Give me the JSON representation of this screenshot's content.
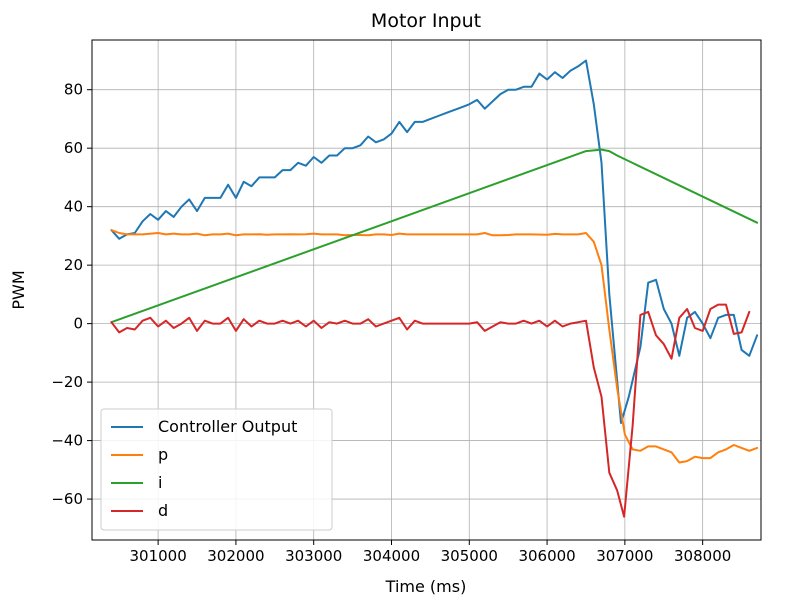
{
  "chart_data": {
    "type": "line",
    "title": "Motor Input",
    "xlabel": "Time (ms)",
    "ylabel": "PWM",
    "xlim": [
      300150,
      308750
    ],
    "ylim": [
      -74,
      97
    ],
    "x_ticks": [
      301000,
      302000,
      303000,
      304000,
      305000,
      306000,
      307000,
      308000
    ],
    "y_ticks": [
      -60,
      -40,
      -20,
      0,
      20,
      40,
      60,
      80
    ],
    "grid": true,
    "legend_position": "lower-left",
    "series": [
      {
        "name": "Controller Output",
        "color": "#1f77b4",
        "points": [
          [
            300400,
            32
          ],
          [
            300500,
            29
          ],
          [
            300600,
            30.5
          ],
          [
            300700,
            31
          ],
          [
            300800,
            35
          ],
          [
            300900,
            37.5
          ],
          [
            301000,
            35.5
          ],
          [
            301100,
            38.5
          ],
          [
            301200,
            36.5
          ],
          [
            301300,
            40
          ],
          [
            301400,
            42.5
          ],
          [
            301500,
            38.5
          ],
          [
            301600,
            43
          ],
          [
            301700,
            43
          ],
          [
            301800,
            43
          ],
          [
            301900,
            47.5
          ],
          [
            302000,
            43
          ],
          [
            302100,
            48.5
          ],
          [
            302200,
            47
          ],
          [
            302300,
            50
          ],
          [
            302400,
            50
          ],
          [
            302500,
            50
          ],
          [
            302600,
            52.5
          ],
          [
            302700,
            52.5
          ],
          [
            302800,
            55
          ],
          [
            302900,
            54
          ],
          [
            303000,
            57
          ],
          [
            303100,
            55
          ],
          [
            303200,
            57.5
          ],
          [
            303300,
            57.5
          ],
          [
            303400,
            60
          ],
          [
            303500,
            60
          ],
          [
            303600,
            61
          ],
          [
            303700,
            64
          ],
          [
            303800,
            62
          ],
          [
            303900,
            63
          ],
          [
            304000,
            65
          ],
          [
            304100,
            69
          ],
          [
            304200,
            65.5
          ],
          [
            304300,
            69
          ],
          [
            304400,
            69
          ],
          [
            304500,
            70
          ],
          [
            304600,
            71
          ],
          [
            304700,
            72
          ],
          [
            304800,
            73
          ],
          [
            304900,
            74
          ],
          [
            305000,
            75
          ],
          [
            305100,
            76.5
          ],
          [
            305200,
            73.5
          ],
          [
            305300,
            76
          ],
          [
            305400,
            78.5
          ],
          [
            305500,
            80
          ],
          [
            305600,
            80
          ],
          [
            305700,
            81
          ],
          [
            305800,
            81
          ],
          [
            305900,
            85.5
          ],
          [
            306000,
            83.5
          ],
          [
            306100,
            86
          ],
          [
            306200,
            84
          ],
          [
            306300,
            86.5
          ],
          [
            306400,
            88
          ],
          [
            306500,
            90
          ],
          [
            306600,
            75
          ],
          [
            306700,
            55
          ],
          [
            306800,
            10
          ],
          [
            306950,
            -34
          ],
          [
            307050,
            -25
          ],
          [
            307200,
            -8
          ],
          [
            307300,
            14
          ],
          [
            307400,
            15
          ],
          [
            307500,
            5
          ],
          [
            307600,
            0
          ],
          [
            307700,
            -11
          ],
          [
            307800,
            2
          ],
          [
            307900,
            4
          ],
          [
            308000,
            0
          ],
          [
            308100,
            -5
          ],
          [
            308200,
            2
          ],
          [
            308300,
            3
          ],
          [
            308400,
            3
          ],
          [
            308500,
            -9
          ],
          [
            308600,
            -11
          ],
          [
            308700,
            -4
          ]
        ]
      },
      {
        "name": "p",
        "color": "#ff7f0e",
        "points": [
          [
            300400,
            32
          ],
          [
            300500,
            31
          ],
          [
            300600,
            30.5
          ],
          [
            300700,
            30.5
          ],
          [
            300800,
            30.5
          ],
          [
            301000,
            31
          ],
          [
            301100,
            30.5
          ],
          [
            301200,
            30.8
          ],
          [
            301300,
            30.5
          ],
          [
            301400,
            30.5
          ],
          [
            301500,
            30.8
          ],
          [
            301600,
            30.2
          ],
          [
            301700,
            30.5
          ],
          [
            301800,
            30.5
          ],
          [
            301900,
            30.8
          ],
          [
            302000,
            30.2
          ],
          [
            302100,
            30.5
          ],
          [
            302200,
            30.5
          ],
          [
            302300,
            30.6
          ],
          [
            302400,
            30.4
          ],
          [
            302500,
            30.5
          ],
          [
            302600,
            30.5
          ],
          [
            302700,
            30.6
          ],
          [
            302800,
            30.5
          ],
          [
            302900,
            30.6
          ],
          [
            303000,
            30.8
          ],
          [
            303100,
            30.5
          ],
          [
            303300,
            30.5
          ],
          [
            303400,
            30.2
          ],
          [
            303500,
            30.3
          ],
          [
            303600,
            30.3
          ],
          [
            303700,
            30.2
          ],
          [
            303800,
            30.5
          ],
          [
            303900,
            30.5
          ],
          [
            304000,
            30.3
          ],
          [
            304100,
            30.8
          ],
          [
            304200,
            30.5
          ],
          [
            304300,
            30.5
          ],
          [
            304400,
            30.5
          ],
          [
            304600,
            30.5
          ],
          [
            304800,
            30.5
          ],
          [
            305000,
            30.5
          ],
          [
            305100,
            30.5
          ],
          [
            305200,
            31
          ],
          [
            305300,
            30.2
          ],
          [
            305400,
            30.2
          ],
          [
            305500,
            30.3
          ],
          [
            305600,
            30.5
          ],
          [
            305700,
            30.5
          ],
          [
            305800,
            30.5
          ],
          [
            306000,
            30.4
          ],
          [
            306100,
            30.7
          ],
          [
            306200,
            30.5
          ],
          [
            306300,
            30.5
          ],
          [
            306400,
            30.5
          ],
          [
            306500,
            31
          ],
          [
            306600,
            28
          ],
          [
            306700,
            20
          ],
          [
            306800,
            -2
          ],
          [
            306900,
            -22
          ],
          [
            307000,
            -38
          ],
          [
            307100,
            -43
          ],
          [
            307200,
            -43.5
          ],
          [
            307300,
            -42
          ],
          [
            307400,
            -42
          ],
          [
            307500,
            -43
          ],
          [
            307600,
            -44
          ],
          [
            307700,
            -47.5
          ],
          [
            307800,
            -47
          ],
          [
            307900,
            -45.5
          ],
          [
            308000,
            -46
          ],
          [
            308100,
            -46
          ],
          [
            308200,
            -44
          ],
          [
            308300,
            -43
          ],
          [
            308400,
            -41.5
          ],
          [
            308500,
            -42.5
          ],
          [
            308600,
            -43.5
          ],
          [
            308700,
            -42.5
          ]
        ]
      },
      {
        "name": "i",
        "color": "#2ca02c",
        "points": [
          [
            300400,
            0.5
          ],
          [
            306500,
            59
          ],
          [
            306700,
            59.5
          ],
          [
            306800,
            59
          ],
          [
            306900,
            57.5
          ],
          [
            308700,
            34.5
          ]
        ]
      },
      {
        "name": "d",
        "color": "#d62728",
        "points": [
          [
            300400,
            0.5
          ],
          [
            300500,
            -3
          ],
          [
            300600,
            -1.5
          ],
          [
            300700,
            -2
          ],
          [
            300800,
            1
          ],
          [
            300900,
            2
          ],
          [
            301000,
            -1
          ],
          [
            301100,
            1
          ],
          [
            301200,
            -1.5
          ],
          [
            301300,
            0
          ],
          [
            301400,
            2
          ],
          [
            301500,
            -2.5
          ],
          [
            301600,
            1
          ],
          [
            301700,
            0
          ],
          [
            301800,
            0
          ],
          [
            301900,
            2
          ],
          [
            302000,
            -2.5
          ],
          [
            302100,
            1.5
          ],
          [
            302200,
            -1
          ],
          [
            302300,
            1
          ],
          [
            302400,
            0
          ],
          [
            302500,
            0
          ],
          [
            302600,
            1
          ],
          [
            302700,
            0
          ],
          [
            302800,
            1
          ],
          [
            302900,
            -1
          ],
          [
            303000,
            1
          ],
          [
            303100,
            -1.5
          ],
          [
            303200,
            0.5
          ],
          [
            303300,
            0
          ],
          [
            303400,
            1
          ],
          [
            303500,
            0
          ],
          [
            303600,
            0
          ],
          [
            303700,
            1.5
          ],
          [
            303800,
            -1
          ],
          [
            303900,
            0
          ],
          [
            304000,
            1
          ],
          [
            304100,
            2
          ],
          [
            304200,
            -2
          ],
          [
            304300,
            1
          ],
          [
            304400,
            0
          ],
          [
            304600,
            0
          ],
          [
            304800,
            0
          ],
          [
            305000,
            0
          ],
          [
            305100,
            0.5
          ],
          [
            305200,
            -2.5
          ],
          [
            305300,
            -1
          ],
          [
            305400,
            0.5
          ],
          [
            305500,
            0
          ],
          [
            305600,
            0
          ],
          [
            305700,
            1
          ],
          [
            305800,
            0
          ],
          [
            305900,
            1
          ],
          [
            306000,
            -1
          ],
          [
            306100,
            1
          ],
          [
            306200,
            -1
          ],
          [
            306300,
            0
          ],
          [
            306400,
            0.5
          ],
          [
            306500,
            1
          ],
          [
            306600,
            -15
          ],
          [
            306700,
            -25
          ],
          [
            306800,
            -51
          ],
          [
            306900,
            -57
          ],
          [
            306990,
            -66
          ],
          [
            307100,
            -35
          ],
          [
            307200,
            3
          ],
          [
            307300,
            4
          ],
          [
            307400,
            -4
          ],
          [
            307500,
            -7
          ],
          [
            307600,
            -12
          ],
          [
            307700,
            2
          ],
          [
            307800,
            5
          ],
          [
            307900,
            -1.5
          ],
          [
            308000,
            -2.5
          ],
          [
            308100,
            5
          ],
          [
            308200,
            6.5
          ],
          [
            308300,
            6.5
          ],
          [
            308400,
            -3.5
          ],
          [
            308500,
            -3
          ],
          [
            308600,
            4
          ]
        ]
      }
    ]
  }
}
